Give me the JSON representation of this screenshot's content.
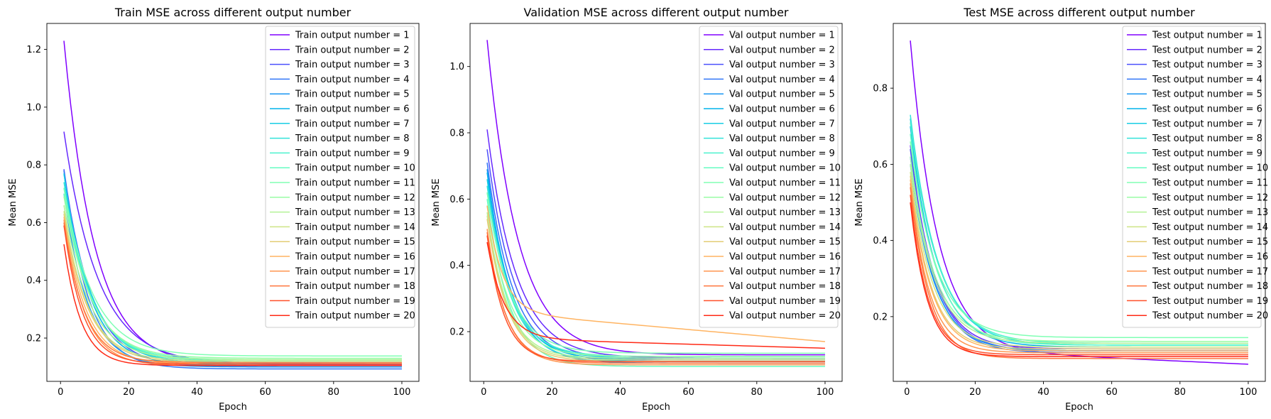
{
  "chart_data": [
    {
      "type": "line",
      "title": "Train MSE across different output number",
      "xlabel": "Epoch",
      "ylabel": "Mean MSE",
      "xlim": [
        -4,
        105
      ],
      "ylim": [
        0.05,
        1.29
      ],
      "xticks": [
        0,
        20,
        40,
        60,
        80,
        100
      ],
      "yticks": [
        0.2,
        0.4,
        0.6,
        0.8,
        1.0,
        1.2
      ],
      "ytick_decimals": 1,
      "legend": "top-right",
      "grid": false,
      "x_range": [
        1,
        100
      ],
      "series": [
        {
          "name": "Train output number = 1",
          "start": 1.23,
          "end": 0.107,
          "tau": 9.0
        },
        {
          "name": "Train output number = 2",
          "start": 0.915,
          "end": 0.11,
          "tau": 10.0
        },
        {
          "name": "Train output number = 3",
          "start": 0.785,
          "end": 0.1,
          "tau": 8.0
        },
        {
          "name": "Train output number = 4",
          "start": 0.78,
          "end": 0.093,
          "tau": 7.0
        },
        {
          "name": "Train output number = 5",
          "start": 0.7,
          "end": 0.1,
          "tau": 7.0
        },
        {
          "name": "Train output number = 6",
          "start": 0.77,
          "end": 0.105,
          "tau": 7.5
        },
        {
          "name": "Train output number = 7",
          "start": 0.77,
          "end": 0.11,
          "tau": 8.0
        },
        {
          "name": "Train output number = 8",
          "start": 0.74,
          "end": 0.115,
          "tau": 8.0
        },
        {
          "name": "Train output number = 9",
          "start": 0.72,
          "end": 0.12,
          "tau": 8.0
        },
        {
          "name": "Train output number = 10",
          "start": 0.7,
          "end": 0.125,
          "tau": 8.0
        },
        {
          "name": "Train output number = 11",
          "start": 0.72,
          "end": 0.138,
          "tau": 8.5
        },
        {
          "name": "Train output number = 12",
          "start": 0.69,
          "end": 0.13,
          "tau": 8.0
        },
        {
          "name": "Train output number = 13",
          "start": 0.66,
          "end": 0.125,
          "tau": 7.5
        },
        {
          "name": "Train output number = 14",
          "start": 0.64,
          "end": 0.12,
          "tau": 7.0
        },
        {
          "name": "Train output number = 15",
          "start": 0.63,
          "end": 0.115,
          "tau": 7.0
        },
        {
          "name": "Train output number = 16",
          "start": 0.62,
          "end": 0.11,
          "tau": 6.5
        },
        {
          "name": "Train output number = 17",
          "start": 0.61,
          "end": 0.105,
          "tau": 6.0
        },
        {
          "name": "Train output number = 18",
          "start": 0.6,
          "end": 0.115,
          "tau": 6.0
        },
        {
          "name": "Train output number = 19",
          "start": 0.59,
          "end": 0.11,
          "tau": 5.5
        },
        {
          "name": "Train output number = 20",
          "start": 0.525,
          "end": 0.105,
          "tau": 5.0
        }
      ]
    },
    {
      "type": "line",
      "title": "Validation MSE across different output number",
      "xlabel": "Epoch",
      "ylabel": "Mean MSE",
      "xlim": [
        -4,
        105
      ],
      "ylim": [
        0.05,
        1.13
      ],
      "xticks": [
        0,
        20,
        40,
        60,
        80,
        100
      ],
      "yticks": [
        0.2,
        0.4,
        0.6,
        0.8,
        1.0
      ],
      "ytick_decimals": 1,
      "legend": "top-right",
      "grid": false,
      "x_range": [
        1,
        100
      ],
      "series": [
        {
          "name": "Val output number = 1",
          "start": 1.08,
          "end": 0.13,
          "tau": 9.0
        },
        {
          "name": "Val output number = 2",
          "start": 0.81,
          "end": 0.12,
          "tau": 8.5
        },
        {
          "name": "Val output number = 3",
          "start": 0.75,
          "end": 0.115,
          "tau": 8.0
        },
        {
          "name": "Val output number = 4",
          "start": 0.71,
          "end": 0.11,
          "tau": 7.5
        },
        {
          "name": "Val output number = 5",
          "start": 0.69,
          "end": 0.105,
          "tau": 7.0
        },
        {
          "name": "Val output number = 6",
          "start": 0.68,
          "end": 0.115,
          "tau": 7.0
        },
        {
          "name": "Val output number = 7",
          "start": 0.66,
          "end": 0.12,
          "tau": 7.0
        },
        {
          "name": "Val output number = 8",
          "start": 0.64,
          "end": 0.11,
          "tau": 7.0
        },
        {
          "name": "Val output number = 9",
          "start": 0.62,
          "end": 0.125,
          "tau": 7.0
        },
        {
          "name": "Val output number = 10",
          "start": 0.6,
          "end": 0.095,
          "tau": 6.5
        },
        {
          "name": "Val output number = 11",
          "start": 0.62,
          "end": 0.135,
          "tau": 7.0
        },
        {
          "name": "Val output number = 12",
          "start": 0.58,
          "end": 0.125,
          "tau": 6.5
        },
        {
          "name": "Val output number = 13",
          "start": 0.56,
          "end": 0.12,
          "tau": 6.0
        },
        {
          "name": "Val output number = 14",
          "start": 0.55,
          "end": 0.115,
          "tau": 6.0
        },
        {
          "name": "Val output number = 15",
          "start": 0.54,
          "end": 0.11,
          "tau": 6.0
        },
        {
          "name": "Val output number = 16",
          "start": 0.58,
          "end": 0.17,
          "tau": 4.5,
          "drift": 0.09
        },
        {
          "name": "Val output number = 17",
          "start": 0.51,
          "end": 0.1,
          "tau": 5.5
        },
        {
          "name": "Val output number = 18",
          "start": 0.5,
          "end": 0.105,
          "tau": 5.5
        },
        {
          "name": "Val output number = 19",
          "start": 0.49,
          "end": 0.11,
          "tau": 5.0
        },
        {
          "name": "Val output number = 20",
          "start": 0.47,
          "end": 0.15,
          "tau": 5.0,
          "drift": 0.03
        }
      ]
    },
    {
      "type": "line",
      "title": "Test MSE across different output number",
      "xlabel": "Epoch",
      "ylabel": "Mean MSE",
      "xlim": [
        -4,
        105
      ],
      "ylim": [
        0.03,
        0.97
      ],
      "xticks": [
        0,
        20,
        40,
        60,
        80,
        100
      ],
      "yticks": [
        0.2,
        0.4,
        0.6,
        0.8
      ],
      "ytick_decimals": 1,
      "legend": "top-right",
      "grid": false,
      "x_range": [
        1,
        100
      ],
      "series": [
        {
          "name": "Test output number = 1",
          "start": 0.925,
          "end": 0.075,
          "tau": 8.0,
          "drift": 0.04
        },
        {
          "name": "Test output number = 2",
          "start": 0.65,
          "end": 0.115,
          "tau": 7.0
        },
        {
          "name": "Test output number = 3",
          "start": 0.64,
          "end": 0.11,
          "tau": 7.0
        },
        {
          "name": "Test output number = 4",
          "start": 0.62,
          "end": 0.105,
          "tau": 7.0
        },
        {
          "name": "Test output number = 5",
          "start": 0.6,
          "end": 0.11,
          "tau": 7.0
        },
        {
          "name": "Test output number = 6",
          "start": 0.7,
          "end": 0.12,
          "tau": 7.5
        },
        {
          "name": "Test output number = 7",
          "start": 0.72,
          "end": 0.125,
          "tau": 8.0
        },
        {
          "name": "Test output number = 8",
          "start": 0.73,
          "end": 0.125,
          "tau": 8.0
        },
        {
          "name": "Test output number = 9",
          "start": 0.71,
          "end": 0.13,
          "tau": 8.0
        },
        {
          "name": "Test output number = 10",
          "start": 0.68,
          "end": 0.125,
          "tau": 7.5
        },
        {
          "name": "Test output number = 11",
          "start": 0.66,
          "end": 0.145,
          "tau": 7.5
        },
        {
          "name": "Test output number = 12",
          "start": 0.62,
          "end": 0.135,
          "tau": 7.0
        },
        {
          "name": "Test output number = 13",
          "start": 0.6,
          "end": 0.13,
          "tau": 7.0
        },
        {
          "name": "Test output number = 14",
          "start": 0.58,
          "end": 0.12,
          "tau": 6.5
        },
        {
          "name": "Test output number = 15",
          "start": 0.57,
          "end": 0.115,
          "tau": 6.0
        },
        {
          "name": "Test output number = 16",
          "start": 0.56,
          "end": 0.11,
          "tau": 6.0
        },
        {
          "name": "Test output number = 17",
          "start": 0.55,
          "end": 0.105,
          "tau": 5.5
        },
        {
          "name": "Test output number = 18",
          "start": 0.54,
          "end": 0.09,
          "tau": 5.5
        },
        {
          "name": "Test output number = 19",
          "start": 0.52,
          "end": 0.1,
          "tau": 5.0
        },
        {
          "name": "Test output number = 20",
          "start": 0.5,
          "end": 0.095,
          "tau": 5.0
        }
      ]
    }
  ],
  "series_colors": [
    "#8000ff",
    "#6629fe",
    "#4c50fc",
    "#3176f8",
    "#1996f3",
    "#00b4ec",
    "#18cde4",
    "#32e3da",
    "#4cf2ce",
    "#66fcc2",
    "#80ffb4",
    "#9afca5",
    "#b4f296",
    "#cde485",
    "#e3cd74",
    "#ffb462",
    "#ff9650",
    "#ff763e",
    "#ff502a",
    "#ff2a16"
  ]
}
